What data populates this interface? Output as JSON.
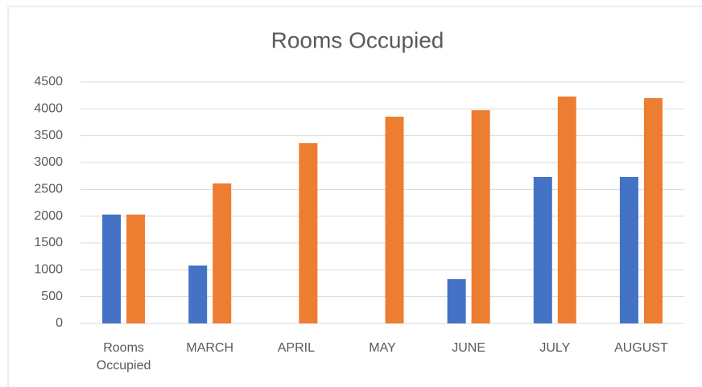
{
  "chart_data": {
    "type": "bar",
    "title": "Rooms Occupied",
    "categories": [
      "Rooms Occupied",
      "MARCH",
      "APRIL",
      "MAY",
      "JUNE",
      "JULY",
      "AUGUST"
    ],
    "series": [
      {
        "color": "#4472c4",
        "values": [
          2030,
          1080,
          0,
          0,
          825,
          2730,
          2730
        ]
      },
      {
        "color": "#ed7d31",
        "values": [
          2030,
          2610,
          3360,
          3855,
          3975,
          4230,
          4200
        ]
      }
    ],
    "ylim": [
      0,
      4500
    ],
    "yticks": [
      0,
      500,
      1000,
      1500,
      2000,
      2500,
      3000,
      3500,
      4000,
      4500
    ],
    "grid": true
  }
}
